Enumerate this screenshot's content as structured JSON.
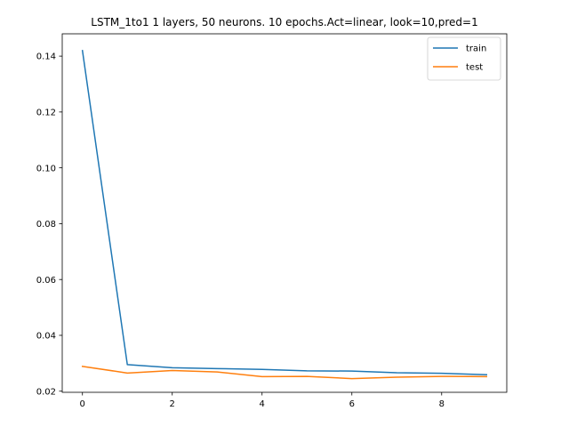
{
  "chart_data": {
    "type": "line",
    "title": "LSTM_1to1 1 layers, 50 neurons. 10 epochs.Act=linear, look=10,pred=1",
    "xlabel": "",
    "ylabel": "",
    "x": [
      0,
      1,
      2,
      3,
      4,
      5,
      6,
      7,
      8,
      9
    ],
    "xlim": [
      -0.45,
      9.45
    ],
    "ylim": [
      0.0196,
      0.148
    ],
    "xticks": [
      0,
      2,
      4,
      6,
      8
    ],
    "yticks": [
      0.02,
      0.04,
      0.06,
      0.08,
      0.1,
      0.12,
      0.14
    ],
    "xtick_labels": [
      "0",
      "2",
      "4",
      "6",
      "8"
    ],
    "ytick_labels": [
      "0.02",
      "0.04",
      "0.06",
      "0.08",
      "0.10",
      "0.12",
      "0.14"
    ],
    "grid": false,
    "legend_position": "upper-right",
    "series": [
      {
        "name": "train",
        "color": "#1f77b4",
        "values": [
          0.142,
          0.0295,
          0.0284,
          0.0281,
          0.0278,
          0.0273,
          0.0272,
          0.0266,
          0.0264,
          0.0259
        ]
      },
      {
        "name": "test",
        "color": "#ff7f0e",
        "values": [
          0.0289,
          0.0265,
          0.0274,
          0.0269,
          0.0252,
          0.0253,
          0.0245,
          0.025,
          0.0253,
          0.0252
        ]
      }
    ]
  }
}
